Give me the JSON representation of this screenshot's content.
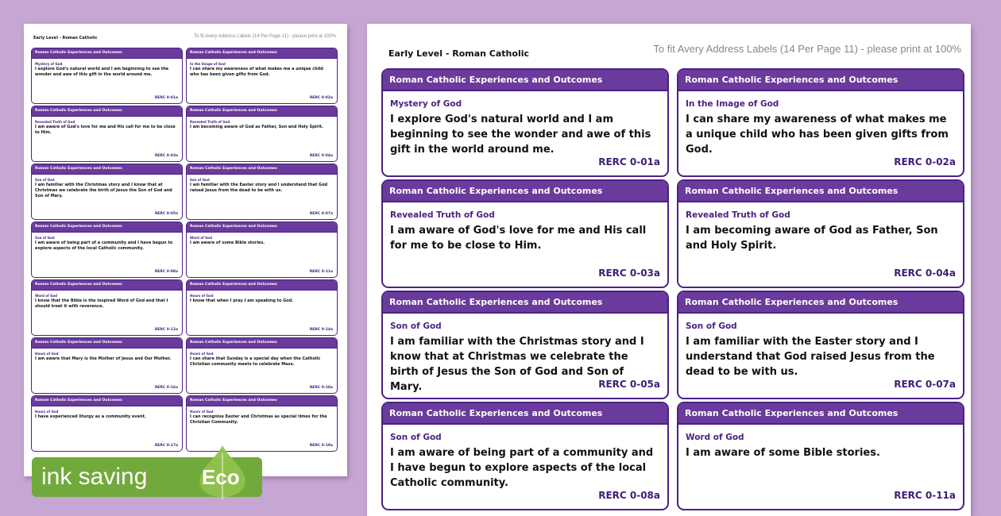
{
  "header": {
    "level": "Early Level - Roman Catholic",
    "instructions": "To fit Avery Address Labels (14 Per Page 11) - please print at 100%"
  },
  "label_heading": "Roman Catholic Experiences and Outcomes",
  "labels": [
    {
      "strand": "Mystery of God",
      "text": "I explore God's natural world and I am beginning to see the wonder and awe of this gift in the world around me.",
      "code": "RERC 0-01a"
    },
    {
      "strand": "In the Image of God",
      "text": "I can share my awareness of what makes me a unique child who has been given gifts from God.",
      "code": "RERC 0-02a"
    },
    {
      "strand": "Revealed Truth of God",
      "text": "I am aware of God's love for me and His call for me to be close to Him.",
      "code": "RERC 0-03a"
    },
    {
      "strand": "Revealed Truth of God",
      "text": "I am becoming aware of God as Father, Son and Holy Spirit.",
      "code": "RERC 0-04a"
    },
    {
      "strand": "Son of God",
      "text": "I am familiar with the Christmas story and I know that at Christmas we celebrate the birth of Jesus the Son of God and Son of Mary.",
      "code": "RERC 0-05a"
    },
    {
      "strand": "Son of God",
      "text": "I am familiar with the Easter story and I understand that God raised Jesus from the dead to be with us.",
      "code": "RERC 0-07a"
    },
    {
      "strand": "Son of God",
      "text": "I am aware of being part of a community and I have begun to explore aspects of the local Catholic community.",
      "code": "RERC 0-08a"
    },
    {
      "strand": "Word of God",
      "text": "I am aware of some Bible stories.",
      "code": "RERC 0-11a"
    },
    {
      "strand": "Word of God",
      "text": "I know that the Bible is the inspired Word of God and that I should treat it with reverence.",
      "code": "RERC 0-12a"
    },
    {
      "strand": "Hours of God",
      "text": "I know that when I pray I am speaking to God.",
      "code": "RERC 0-14a"
    },
    {
      "strand": "Hours of God",
      "text": "I am aware that Mary is the Mother of Jesus and Our Mother.",
      "code": "RERC 0-16a"
    },
    {
      "strand": "Hours of God",
      "text": "I can share that Sunday is a special day when the Catholic Christian community meets to celebrate Mass.",
      "code": "RERC 0-18a"
    },
    {
      "strand": "Hours of God",
      "text": "I have experienced liturgy as a community event.",
      "code": "RERC 0-17a"
    },
    {
      "strand": "Hours of God",
      "text": "I can recognise Easter and Christmas as special times for the Christian Community.",
      "code": "RERC 0-19a"
    }
  ],
  "badge": {
    "label": "ink saving",
    "eco": "Eco",
    "color": "#72a93c"
  },
  "colors": {
    "background": "#c6a6d2",
    "label_header": "#6a3a9c",
    "label_border": "#4b2283"
  }
}
